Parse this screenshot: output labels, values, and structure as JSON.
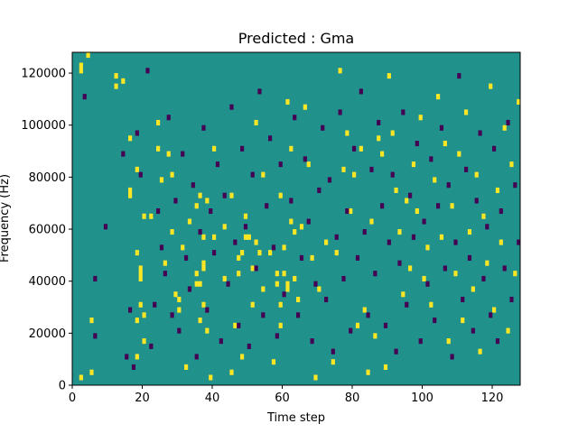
{
  "chart_data": {
    "type": "heatmap",
    "title": "Predicted : Gma",
    "xlabel": "Time step",
    "ylabel": "Frequency (Hz)",
    "xlim": [
      0,
      128
    ],
    "ylim": [
      0,
      128000
    ],
    "x_ticks": [
      0,
      20,
      40,
      60,
      80,
      100,
      120
    ],
    "y_ticks": [
      0,
      20000,
      40000,
      60000,
      80000,
      100000,
      120000
    ],
    "x_tick_labels": [
      "0",
      "20",
      "40",
      "60",
      "80",
      "100",
      "120"
    ],
    "y_tick_labels": [
      "0",
      "20000",
      "40000",
      "60000",
      "80000",
      "100000",
      "120000"
    ],
    "grid_shape": {
      "time_steps": 128,
      "frequency_bins": 64,
      "bin_width_hz": 2000
    },
    "levels": {
      "low": -1,
      "background": 0,
      "high": 1
    },
    "colors": {
      "low": "#440154",
      "background": "#21918c",
      "high": "#fde725"
    },
    "cells_high": [
      [
        2,
        60
      ],
      [
        2,
        61
      ],
      [
        2,
        1
      ],
      [
        4,
        63
      ],
      [
        5,
        2
      ],
      [
        5,
        12
      ],
      [
        12,
        59
      ],
      [
        12,
        57
      ],
      [
        14,
        58
      ],
      [
        16,
        47
      ],
      [
        16,
        37
      ],
      [
        16,
        36
      ],
      [
        18,
        5
      ],
      [
        18,
        12
      ],
      [
        18,
        25
      ],
      [
        18,
        41
      ],
      [
        19,
        15
      ],
      [
        19,
        20
      ],
      [
        19,
        21
      ],
      [
        19,
        22
      ],
      [
        20,
        8
      ],
      [
        20,
        13
      ],
      [
        20,
        32
      ],
      [
        22,
        32
      ],
      [
        24,
        50
      ],
      [
        24,
        45
      ],
      [
        25,
        39
      ],
      [
        26,
        23
      ],
      [
        27,
        44
      ],
      [
        28,
        29
      ],
      [
        28,
        40
      ],
      [
        29,
        17
      ],
      [
        30,
        16
      ],
      [
        30,
        14
      ],
      [
        31,
        26
      ],
      [
        32,
        3
      ],
      [
        33,
        31
      ],
      [
        35,
        19
      ],
      [
        35,
        21
      ],
      [
        35,
        34
      ],
      [
        36,
        19
      ],
      [
        36,
        36
      ],
      [
        36,
        12
      ],
      [
        37,
        15
      ],
      [
        37,
        22
      ],
      [
        37,
        23
      ],
      [
        37,
        28
      ],
      [
        38,
        10
      ],
      [
        38,
        35
      ],
      [
        39,
        1
      ],
      [
        40,
        28
      ],
      [
        40,
        45
      ],
      [
        43,
        20
      ],
      [
        43,
        30
      ],
      [
        45,
        2
      ],
      [
        45,
        36
      ],
      [
        46,
        11
      ],
      [
        47,
        21
      ],
      [
        47,
        24
      ],
      [
        48,
        25
      ],
      [
        48,
        5
      ],
      [
        49,
        32
      ],
      [
        49,
        28
      ],
      [
        50,
        28
      ],
      [
        51,
        22
      ],
      [
        51,
        15
      ],
      [
        52,
        50
      ],
      [
        52,
        27
      ],
      [
        53,
        25
      ],
      [
        54,
        40
      ],
      [
        54,
        18
      ],
      [
        56,
        25
      ],
      [
        57,
        4
      ],
      [
        58,
        19
      ],
      [
        58,
        21
      ],
      [
        59,
        11
      ],
      [
        59,
        15
      ],
      [
        59,
        36
      ],
      [
        60,
        21
      ],
      [
        60,
        26
      ],
      [
        61,
        18
      ],
      [
        61,
        19
      ],
      [
        61,
        54
      ],
      [
        62,
        31
      ],
      [
        62,
        45
      ],
      [
        63,
        20
      ],
      [
        63,
        29
      ],
      [
        64,
        16
      ],
      [
        65,
        30
      ],
      [
        66,
        53
      ],
      [
        67,
        42
      ],
      [
        68,
        24
      ],
      [
        69,
        1
      ],
      [
        70,
        18
      ],
      [
        72,
        27
      ],
      [
        74,
        4
      ],
      [
        75,
        25
      ],
      [
        76,
        60
      ],
      [
        77,
        41
      ],
      [
        78,
        48
      ],
      [
        79,
        33
      ],
      [
        80,
        40
      ],
      [
        81,
        11
      ],
      [
        82,
        45
      ],
      [
        83,
        14
      ],
      [
        84,
        2
      ],
      [
        85,
        31
      ],
      [
        86,
        9
      ],
      [
        87,
        47
      ],
      [
        88,
        44
      ],
      [
        89,
        3
      ],
      [
        90,
        59
      ],
      [
        91,
        48
      ],
      [
        92,
        37
      ],
      [
        93,
        29
      ],
      [
        94,
        17
      ],
      [
        95,
        35
      ],
      [
        96,
        22
      ],
      [
        97,
        42
      ],
      [
        98,
        33
      ],
      [
        99,
        51
      ],
      [
        100,
        20
      ],
      [
        101,
        26
      ],
      [
        102,
        15
      ],
      [
        103,
        39
      ],
      [
        104,
        55
      ],
      [
        105,
        28
      ],
      [
        106,
        46
      ],
      [
        107,
        8
      ],
      [
        108,
        34
      ],
      [
        109,
        21
      ],
      [
        110,
        44
      ],
      [
        111,
        12
      ],
      [
        112,
        52
      ],
      [
        113,
        29
      ],
      [
        114,
        18
      ],
      [
        115,
        40
      ],
      [
        116,
        6
      ],
      [
        117,
        32
      ],
      [
        118,
        23
      ],
      [
        119,
        57
      ],
      [
        120,
        14
      ],
      [
        121,
        37
      ],
      [
        122,
        27
      ],
      [
        123,
        49
      ],
      [
        124,
        10
      ],
      [
        125,
        42
      ],
      [
        126,
        21
      ],
      [
        127,
        54
      ]
    ],
    "cells_low": [
      [
        3,
        55
      ],
      [
        6,
        9
      ],
      [
        6,
        20
      ],
      [
        9,
        30
      ],
      [
        14,
        44
      ],
      [
        15,
        5
      ],
      [
        16,
        14
      ],
      [
        17,
        3
      ],
      [
        18,
        48
      ],
      [
        19,
        40
      ],
      [
        21,
        60
      ],
      [
        22,
        7
      ],
      [
        23,
        15
      ],
      [
        24,
        33
      ],
      [
        25,
        26
      ],
      [
        26,
        21
      ],
      [
        27,
        51
      ],
      [
        28,
        13
      ],
      [
        29,
        35
      ],
      [
        30,
        10
      ],
      [
        31,
        44
      ],
      [
        32,
        24
      ],
      [
        33,
        18
      ],
      [
        34,
        38
      ],
      [
        35,
        5
      ],
      [
        36,
        29
      ],
      [
        37,
        49
      ],
      [
        38,
        14
      ],
      [
        39,
        33
      ],
      [
        40,
        25
      ],
      [
        41,
        42
      ],
      [
        42,
        8
      ],
      [
        43,
        36
      ],
      [
        44,
        19
      ],
      [
        45,
        53
      ],
      [
        46,
        27
      ],
      [
        47,
        11
      ],
      [
        48,
        45
      ],
      [
        49,
        30
      ],
      [
        50,
        7
      ],
      [
        51,
        40
      ],
      [
        52,
        22
      ],
      [
        53,
        56
      ],
      [
        54,
        13
      ],
      [
        55,
        34
      ],
      [
        56,
        47
      ],
      [
        57,
        26
      ],
      [
        58,
        9
      ],
      [
        59,
        42
      ],
      [
        60,
        17
      ],
      [
        62,
        35
      ],
      [
        63,
        51
      ],
      [
        64,
        13
      ],
      [
        65,
        24
      ],
      [
        66,
        43
      ],
      [
        67,
        31
      ],
      [
        68,
        8
      ],
      [
        69,
        19
      ],
      [
        70,
        37
      ],
      [
        71,
        49
      ],
      [
        72,
        16
      ],
      [
        73,
        39
      ],
      [
        74,
        6
      ],
      [
        75,
        28
      ],
      [
        76,
        52
      ],
      [
        77,
        20
      ],
      [
        78,
        33
      ],
      [
        79,
        10
      ],
      [
        80,
        45
      ],
      [
        81,
        24
      ],
      [
        82,
        56
      ],
      [
        83,
        29
      ],
      [
        84,
        13
      ],
      [
        85,
        41
      ],
      [
        86,
        21
      ],
      [
        87,
        50
      ],
      [
        88,
        34
      ],
      [
        89,
        11
      ],
      [
        90,
        27
      ],
      [
        91,
        40
      ],
      [
        92,
        6
      ],
      [
        93,
        23
      ],
      [
        94,
        52
      ],
      [
        95,
        15
      ],
      [
        96,
        36
      ],
      [
        97,
        28
      ],
      [
        98,
        46
      ],
      [
        99,
        8
      ],
      [
        100,
        31
      ],
      [
        101,
        19
      ],
      [
        102,
        43
      ],
      [
        103,
        12
      ],
      [
        104,
        34
      ],
      [
        105,
        49
      ],
      [
        106,
        22
      ],
      [
        107,
        38
      ],
      [
        108,
        5
      ],
      [
        109,
        27
      ],
      [
        110,
        59
      ],
      [
        111,
        16
      ],
      [
        112,
        41
      ],
      [
        113,
        24
      ],
      [
        114,
        10
      ],
      [
        115,
        35
      ],
      [
        116,
        48
      ],
      [
        117,
        20
      ],
      [
        118,
        30
      ],
      [
        119,
        13
      ],
      [
        120,
        45
      ],
      [
        121,
        8
      ],
      [
        122,
        33
      ],
      [
        123,
        22
      ],
      [
        124,
        50
      ],
      [
        125,
        16
      ],
      [
        126,
        38
      ],
      [
        127,
        27
      ]
    ]
  }
}
